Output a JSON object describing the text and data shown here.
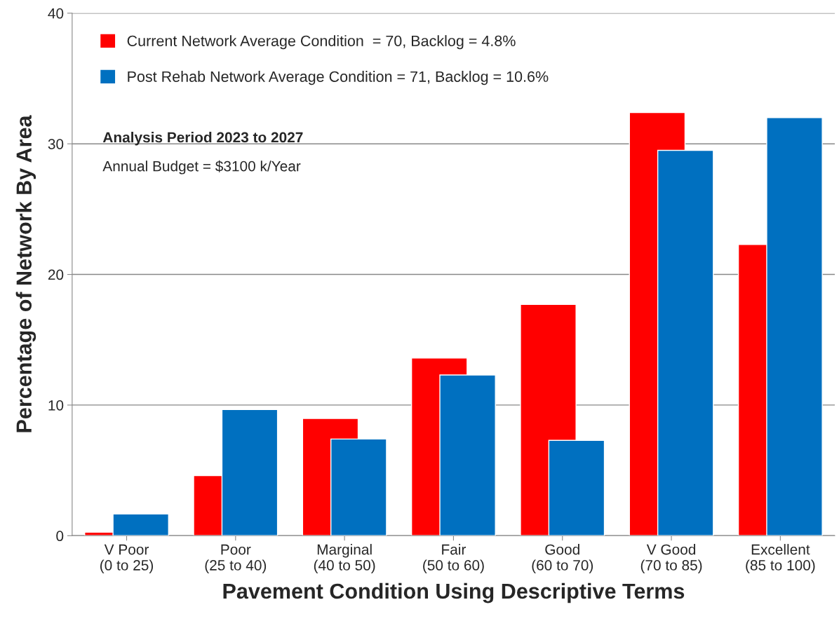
{
  "chart_data": {
    "type": "bar",
    "xlabel": "Pavement Condition Using Descriptive Terms",
    "ylabel": "Percentage of Network By Area",
    "categories": [
      "V Poor\n(0 to 25)",
      "Poor\n(25 to 40)",
      "Marginal\n(40 to 50)",
      "Fair\n(50 to 60)",
      "Good\n(60 to 70)",
      "V Good\n(70 to 85)",
      "Excellent\n(85 to 100)"
    ],
    "series": [
      {
        "name": "Current Network Average Condition  = 70, Backlog = 4.8%",
        "color": "#ff0000",
        "values": [
          0.27,
          4.6,
          8.97,
          13.6,
          17.7,
          32.4,
          22.3
        ]
      },
      {
        "name": "Post Rehab Network Average Condition = 71, Backlog = 10.6%",
        "color": "#0070c0",
        "values": [
          1.66,
          9.66,
          7.4,
          12.3,
          7.3,
          29.5,
          32.0
        ]
      }
    ],
    "ylim": [
      0,
      40
    ],
    "yticks": [
      0,
      10,
      20,
      30,
      40
    ],
    "grid": "y",
    "legend": "top left",
    "annotations": [
      "Analysis Period 2023 to 2027",
      "Annual Budget = $3100 k/Year"
    ]
  }
}
